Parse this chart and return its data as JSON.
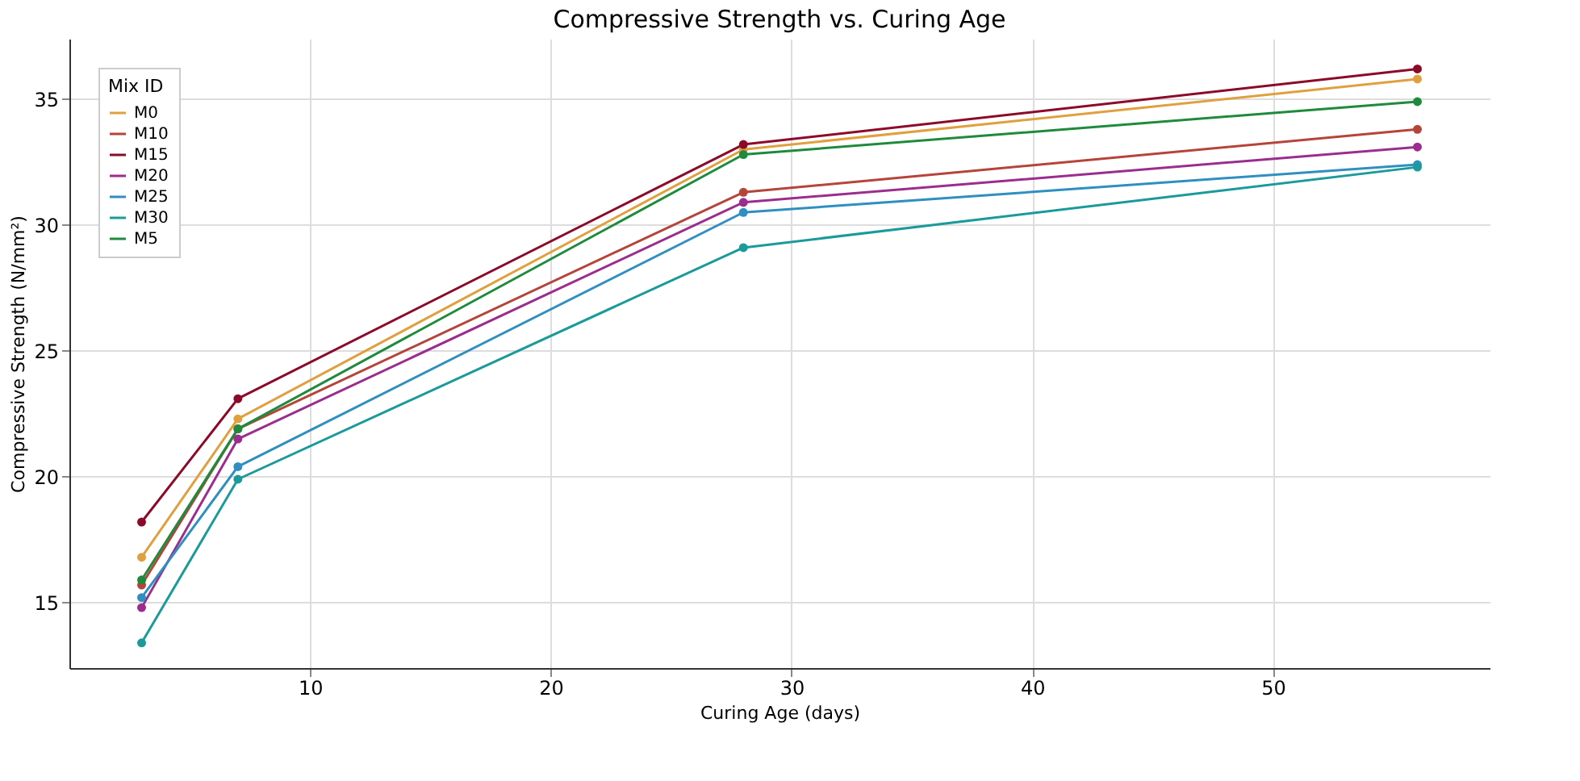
{
  "chart_data": {
    "type": "line",
    "title": "Compressive Strength vs. Curing Age",
    "xlabel": "Curing Age (days)",
    "ylabel": "Compressive Strength (N/mm²)",
    "legend_title": "Mix ID",
    "x": [
      3,
      7,
      28,
      56
    ],
    "series": [
      {
        "name": "M0",
        "color": "#e0a040",
        "values": [
          16.8,
          22.3,
          33.0,
          35.8
        ]
      },
      {
        "name": "M10",
        "color": "#b5443a",
        "values": [
          15.7,
          21.9,
          31.3,
          33.8
        ]
      },
      {
        "name": "M15",
        "color": "#8b0a2a",
        "values": [
          18.2,
          23.1,
          33.2,
          36.2
        ]
      },
      {
        "name": "M20",
        "color": "#9b2d8e",
        "values": [
          14.8,
          21.5,
          30.9,
          33.1
        ]
      },
      {
        "name": "M25",
        "color": "#2e8fc0",
        "values": [
          15.2,
          20.4,
          30.5,
          32.4
        ]
      },
      {
        "name": "M30",
        "color": "#1a9a9a",
        "values": [
          13.4,
          19.9,
          29.1,
          32.3
        ]
      },
      {
        "name": "M5",
        "color": "#1e8a3c",
        "values": [
          15.9,
          21.9,
          32.8,
          34.9
        ]
      }
    ],
    "xlim": [
      0,
      59
    ],
    "ylim": [
      12.4,
      37.4
    ],
    "xticks": [
      10,
      20,
      30,
      40,
      50
    ],
    "yticks": [
      15,
      20,
      25,
      30,
      35
    ],
    "grid": true,
    "legend": "top left",
    "marker": "circle",
    "line_style": "solid"
  }
}
